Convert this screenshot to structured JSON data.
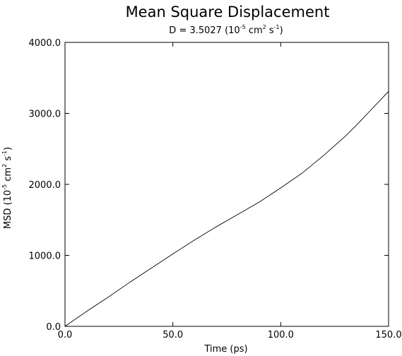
{
  "chart_data": {
    "type": "line",
    "title": "Mean  Square Displacement",
    "subtitle": {
      "prefix": "D = 3.5027 (10",
      "exp1": "-5",
      "mid1": " cm",
      "exp2": "2",
      "mid2": " s",
      "exp3": "-1",
      "suffix": ")"
    },
    "xlabel": "Time (ps)",
    "ylabel": {
      "prefix": "MSD (10",
      "exp1": "-5",
      "mid1": " cm",
      "exp2": "2",
      "mid2": " s",
      "exp3": "-1",
      "suffix": ")"
    },
    "xlim": [
      0,
      150
    ],
    "ylim": [
      0,
      4000
    ],
    "xticks": [
      0,
      50,
      100,
      150
    ],
    "xtick_labels": [
      "0.0",
      "50.0",
      "100.0",
      "150.0"
    ],
    "yticks": [
      0,
      1000,
      2000,
      3000,
      4000
    ],
    "ytick_labels": [
      "0.0",
      "1000.0",
      "2000.0",
      "3000.0",
      "4000.0"
    ],
    "grid": false,
    "series": [
      {
        "x": [
          0,
          10,
          20,
          30,
          40,
          50,
          60,
          70,
          80,
          90,
          100,
          110,
          120,
          130,
          135,
          140,
          145,
          150
        ],
        "y": [
          0,
          210,
          410,
          620,
          820,
          1020,
          1215,
          1400,
          1575,
          1750,
          1950,
          2160,
          2410,
          2680,
          2830,
          2990,
          3150,
          3310
        ]
      }
    ]
  }
}
